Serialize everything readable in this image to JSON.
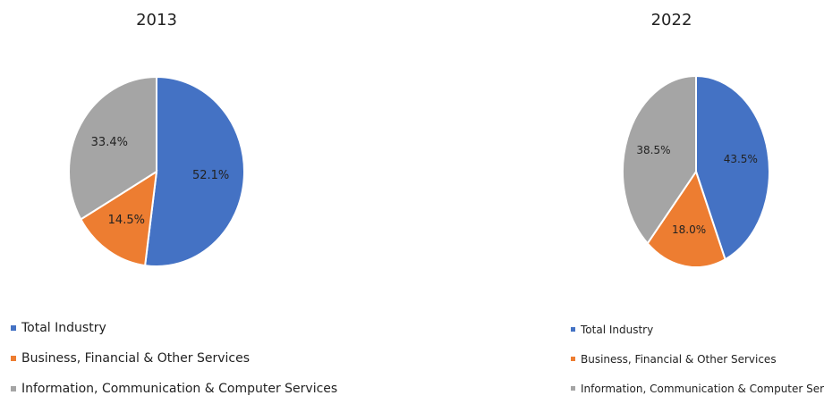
{
  "chart_data": [
    {
      "type": "pie",
      "title": "2013",
      "categories": [
        "Total Industry",
        "Business, Financial & Other Services",
        "Information, Communication & Computer Services"
      ],
      "values": [
        52.1,
        14.5,
        33.4
      ],
      "labels": [
        "52.1%",
        "14.5%",
        "33.4%"
      ],
      "colors": [
        "#4472C4",
        "#ED7D31",
        "#A5A5A5"
      ],
      "legend_position": "bottom"
    },
    {
      "type": "pie",
      "title": "2022",
      "categories": [
        "Total Industry",
        "Business, Financial & Other Services",
        "Information, Communication & Computer Services"
      ],
      "values": [
        43.5,
        18.0,
        38.5
      ],
      "labels": [
        "43.5%",
        "18.0%",
        "38.5%"
      ],
      "colors": [
        "#4472C4",
        "#ED7D31",
        "#A5A5A5"
      ],
      "legend_position": "bottom"
    }
  ]
}
